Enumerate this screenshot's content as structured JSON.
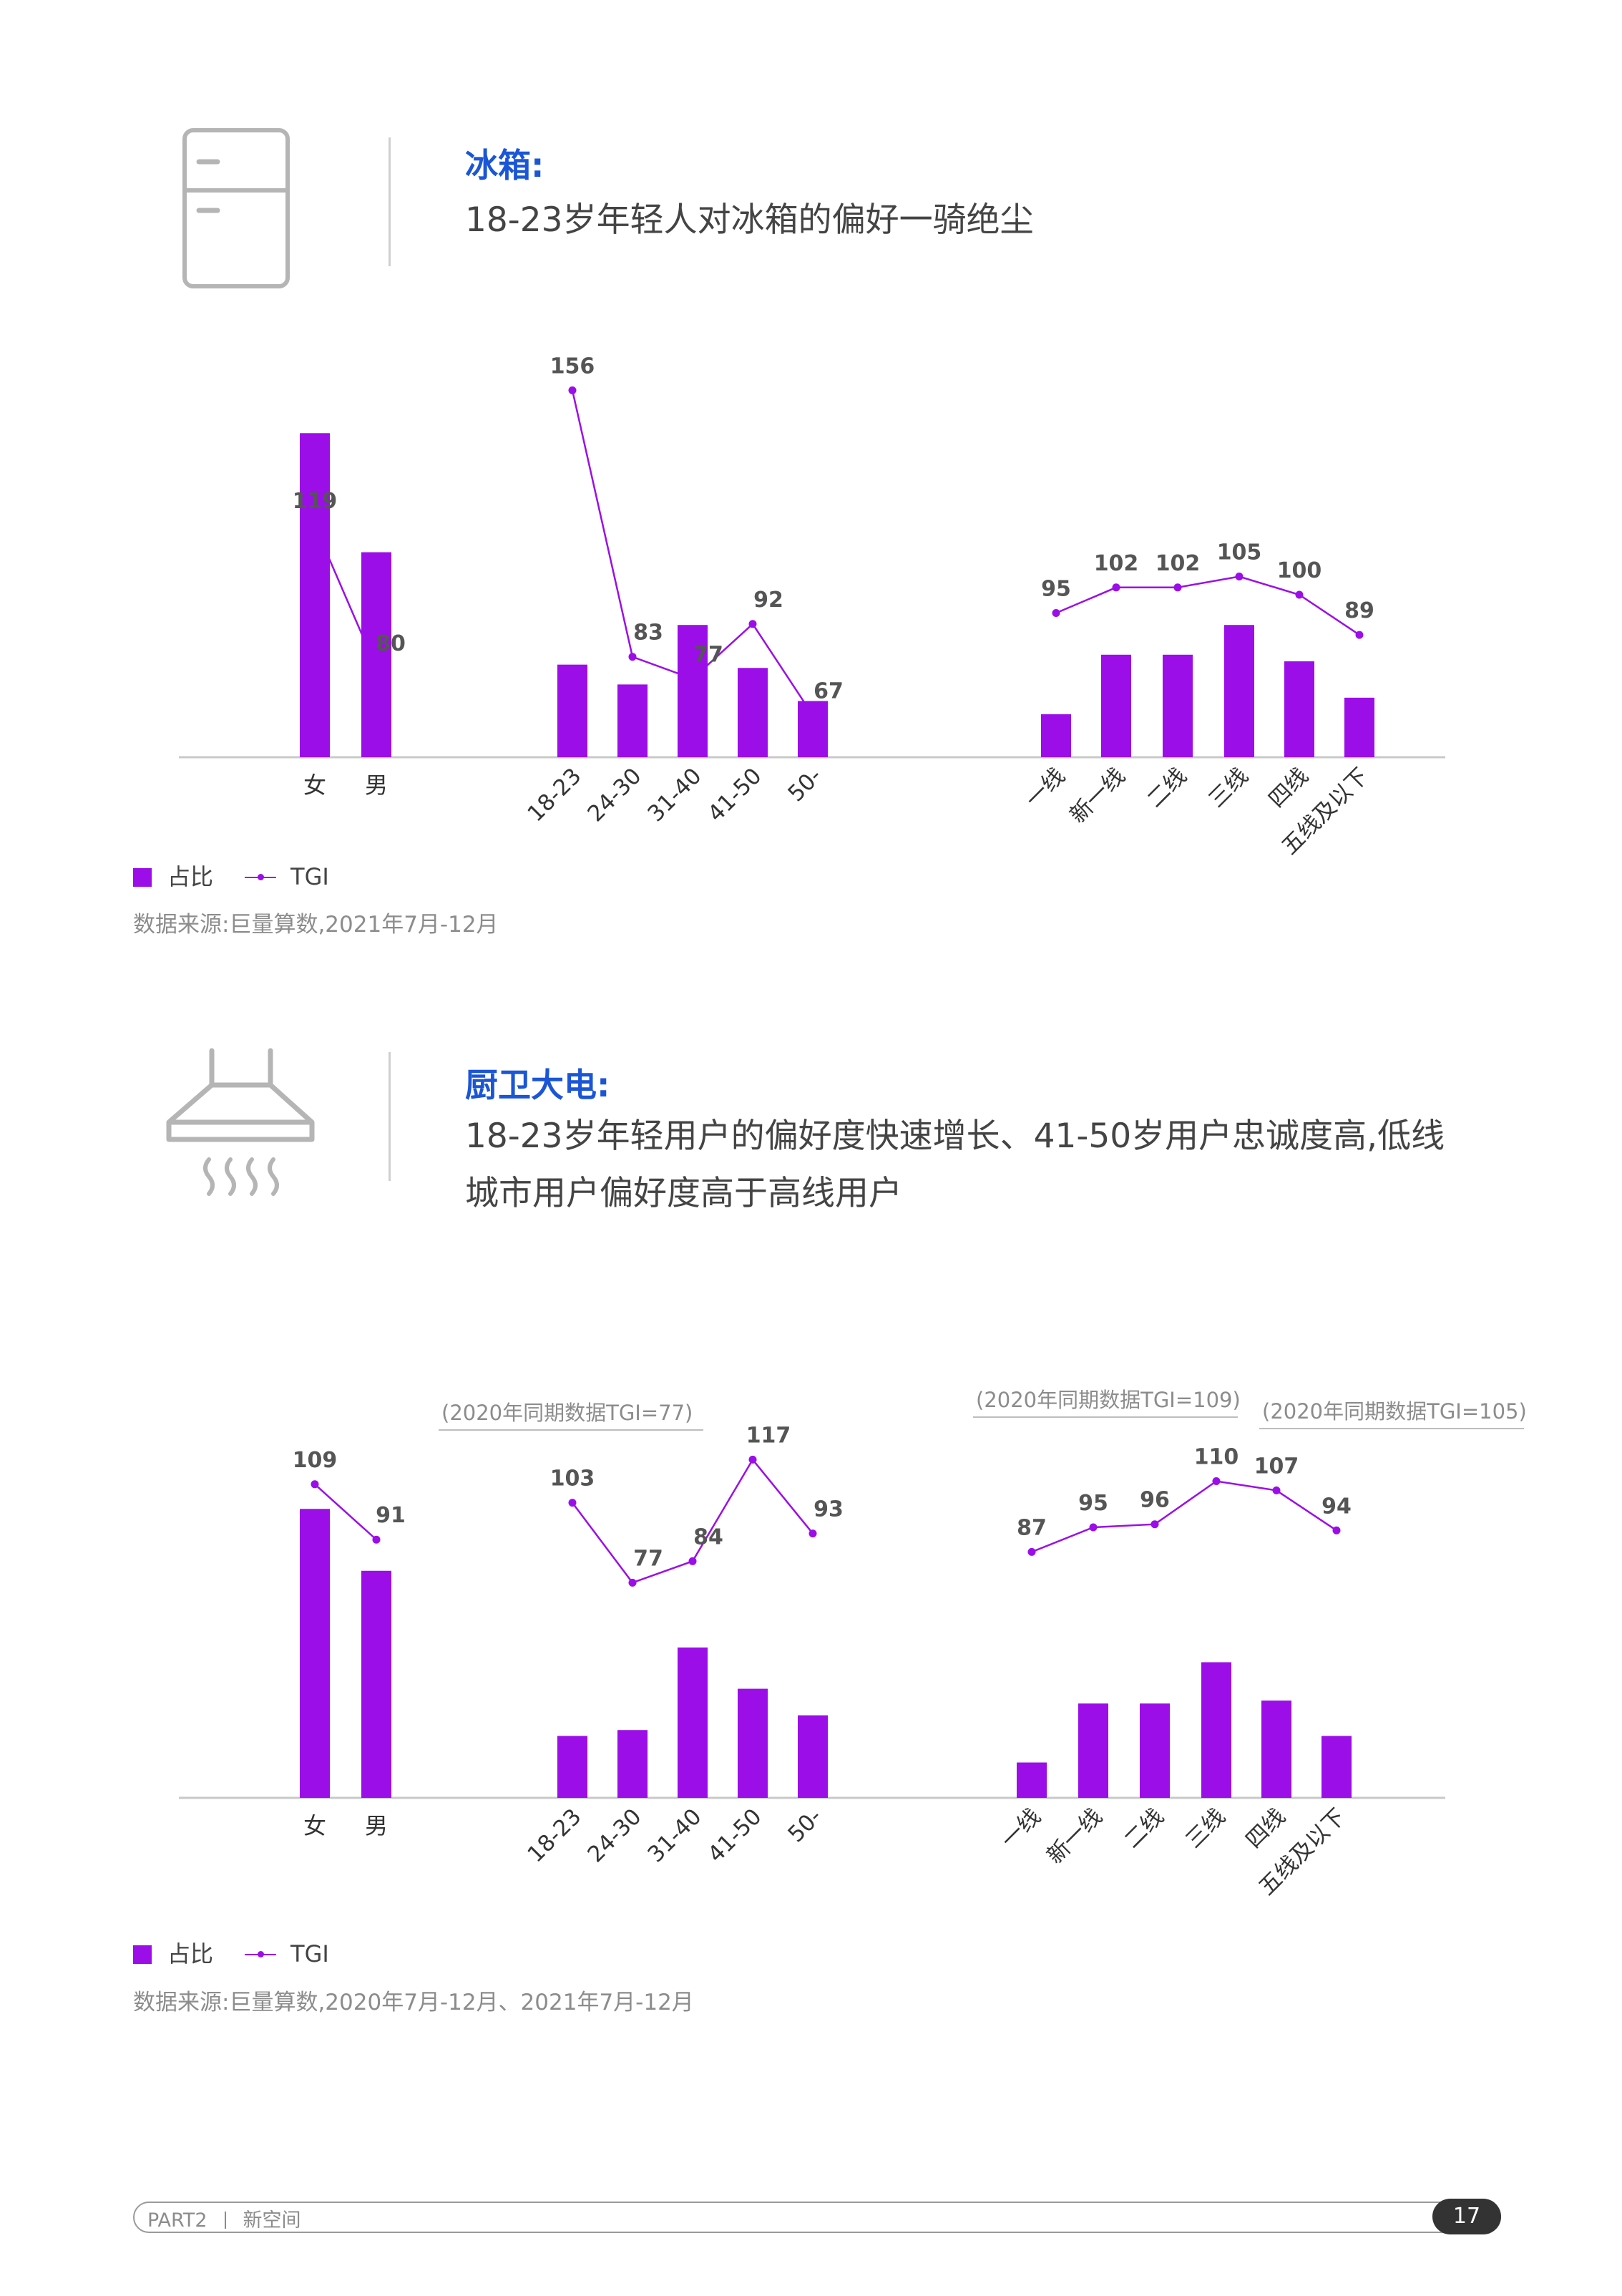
{
  "sections": [
    {
      "icon": "fridge-icon",
      "title": "冰箱:",
      "subtitle_lines": [
        "18-23岁年轻人对冰箱的偏好一骑绝尘"
      ],
      "legend": {
        "bar": "占比",
        "line": "TGI"
      },
      "source": "数据来源:巨量算数,2021年7月-12月"
    },
    {
      "icon": "range-hood-icon",
      "title": "厨卫大电:",
      "subtitle_lines": [
        "18-23岁年轻用户的偏好度快速增长、41-50岁用户忠诚度高,低线",
        "城市用户偏好度高于高线用户"
      ],
      "legend": {
        "bar": "占比",
        "line": "TGI"
      },
      "source": "数据来源:巨量算数,2020年7月-12月、2021年7月-12月"
    }
  ],
  "chart_data": [
    {
      "type": "bar",
      "title": "冰箱:",
      "colors": {
        "bar": "#9b0ee8",
        "line": "#9b0ee8"
      },
      "groups": [
        {
          "name": "gender",
          "categories": [
            "女",
            "男"
          ],
          "share_relative": [
            0.98,
            0.62
          ],
          "tgi": [
            119,
            80
          ]
        },
        {
          "name": "age",
          "categories": [
            "18-23",
            "24-30",
            "31-40",
            "41-50",
            "50-"
          ],
          "share_relative": [
            0.28,
            0.22,
            0.4,
            0.27,
            0.17
          ],
          "tgi": [
            156,
            83,
            77,
            92,
            67
          ]
        },
        {
          "name": "city_tier",
          "categories": [
            "一线",
            "新一线",
            "二线",
            "三线",
            "四线",
            "五线及以下"
          ],
          "share_relative": [
            0.13,
            0.31,
            0.31,
            0.4,
            0.29,
            0.18
          ],
          "tgi": [
            95,
            102,
            102,
            105,
            100,
            89
          ]
        }
      ],
      "annotations": []
    },
    {
      "type": "bar",
      "title": "厨卫大电:",
      "colors": {
        "bar": "#9b0ee8",
        "line": "#9b0ee8"
      },
      "groups": [
        {
          "name": "gender",
          "categories": [
            "女",
            "男"
          ],
          "share_relative": [
            0.98,
            0.77
          ],
          "tgi": [
            109,
            91
          ]
        },
        {
          "name": "age",
          "categories": [
            "18-23",
            "24-30",
            "31-40",
            "41-50",
            "50-"
          ],
          "share_relative": [
            0.21,
            0.23,
            0.51,
            0.37,
            0.28
          ],
          "tgi": [
            103,
            77,
            84,
            117,
            93
          ]
        },
        {
          "name": "city_tier",
          "categories": [
            "一线",
            "新一线",
            "二线",
            "三线",
            "四线",
            "五线及以下"
          ],
          "share_relative": [
            0.12,
            0.32,
            0.32,
            0.46,
            0.33,
            0.21
          ],
          "tgi": [
            87,
            95,
            96,
            110,
            107,
            94
          ]
        }
      ],
      "annotations": [
        {
          "group": "age",
          "category": "18-23",
          "text": "(2020年同期数据TGI=77)"
        },
        {
          "group": "city_tier",
          "category": "三线",
          "text": "(2020年同期数据TGI=109)"
        },
        {
          "group": "city_tier",
          "category": "四线",
          "text": "(2020年同期数据TGI=105)"
        }
      ]
    }
  ],
  "footer": {
    "part": "PART2",
    "section": "新空间",
    "page": "17"
  }
}
